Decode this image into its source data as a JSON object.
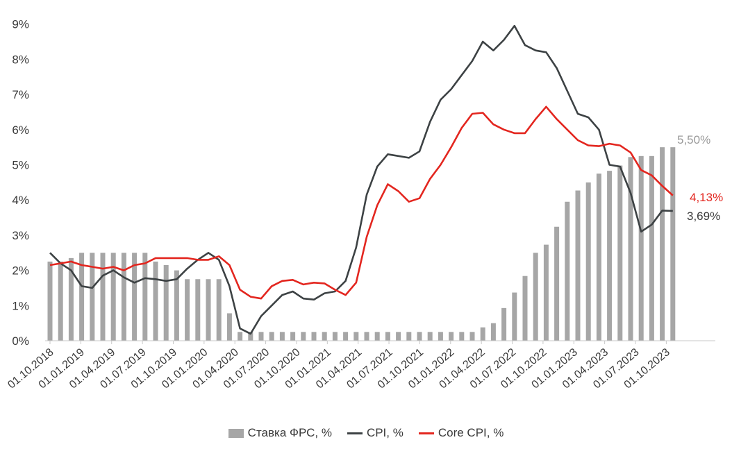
{
  "chart_data": {
    "type": "bar+line",
    "ylim": [
      0,
      9
    ],
    "y_ticks": [
      "0%",
      "1%",
      "2%",
      "3%",
      "4%",
      "5%",
      "6%",
      "7%",
      "8%",
      "9%"
    ],
    "x_ticks": [
      "01.10.2018",
      "01.01.2019",
      "01.04.2019",
      "01.07.2019",
      "01.10.2019",
      "01.01.2020",
      "01.04.2020",
      "01.07.2020",
      "01.10.2020",
      "01.01.2021",
      "01.04.2021",
      "01.07.2021",
      "01.10.2021",
      "01.01.2022",
      "01.04.2022",
      "01.07.2022",
      "01.10.2022",
      "01.01.2023",
      "01.04.2023",
      "01.07.2023",
      "01.10.2023"
    ],
    "grid": false,
    "legend_position": "bottom",
    "series": [
      {
        "name": "Ставка ФРС, %",
        "type": "bar",
        "color": "#a6a6a6",
        "values": [
          2.25,
          2.25,
          2.35,
          2.5,
          2.5,
          2.5,
          2.5,
          2.5,
          2.5,
          2.5,
          2.25,
          2.15,
          2.0,
          1.75,
          1.75,
          1.75,
          1.75,
          0.78,
          0.25,
          0.25,
          0.25,
          0.25,
          0.25,
          0.25,
          0.25,
          0.25,
          0.25,
          0.25,
          0.25,
          0.25,
          0.25,
          0.25,
          0.25,
          0.25,
          0.25,
          0.25,
          0.25,
          0.25,
          0.25,
          0.25,
          0.25,
          0.38,
          0.5,
          0.93,
          1.37,
          1.84,
          2.5,
          2.73,
          3.24,
          3.95,
          4.27,
          4.5,
          4.75,
          4.83,
          4.98,
          5.22,
          5.25,
          5.25,
          5.5,
          5.5
        ]
      },
      {
        "name": "CPI, %",
        "type": "line",
        "color": "#3d4244",
        "values": [
          2.5,
          2.2,
          2.0,
          1.55,
          1.5,
          1.85,
          2.0,
          1.8,
          1.65,
          1.78,
          1.75,
          1.7,
          1.75,
          2.05,
          2.3,
          2.5,
          2.3,
          1.55,
          0.35,
          0.2,
          0.7,
          1.0,
          1.3,
          1.4,
          1.2,
          1.17,
          1.35,
          1.4,
          1.7,
          2.65,
          4.15,
          4.95,
          5.3,
          5.25,
          5.2,
          5.38,
          6.22,
          6.85,
          7.15,
          7.55,
          7.95,
          8.5,
          8.25,
          8.55,
          8.95,
          8.4,
          8.25,
          8.2,
          7.75,
          7.1,
          6.45,
          6.35,
          6.0,
          5.0,
          4.95,
          4.2,
          3.1,
          3.3,
          3.7,
          3.69
        ]
      },
      {
        "name": "Core CPI, %",
        "type": "line",
        "color": "#e3261f",
        "values": [
          2.15,
          2.2,
          2.25,
          2.15,
          2.1,
          2.05,
          2.1,
          2.0,
          2.15,
          2.2,
          2.35,
          2.35,
          2.35,
          2.35,
          2.3,
          2.3,
          2.4,
          2.15,
          1.45,
          1.25,
          1.2,
          1.55,
          1.7,
          1.73,
          1.6,
          1.65,
          1.63,
          1.45,
          1.3,
          1.65,
          2.95,
          3.85,
          4.45,
          4.25,
          3.95,
          4.05,
          4.6,
          5.0,
          5.5,
          6.05,
          6.45,
          6.48,
          6.15,
          6.0,
          5.9,
          5.9,
          6.3,
          6.65,
          6.3,
          6.0,
          5.7,
          5.55,
          5.53,
          5.6,
          5.55,
          5.35,
          4.85,
          4.7,
          4.4,
          4.13
        ]
      }
    ],
    "annotations": {
      "fed_rate": "5,50%",
      "core_cpi": "4,13%",
      "cpi": "3,69%"
    }
  },
  "legend": {
    "fed_rate": "Ставка ФРС, %",
    "cpi": "CPI, %",
    "core_cpi": "Core CPI, %"
  }
}
